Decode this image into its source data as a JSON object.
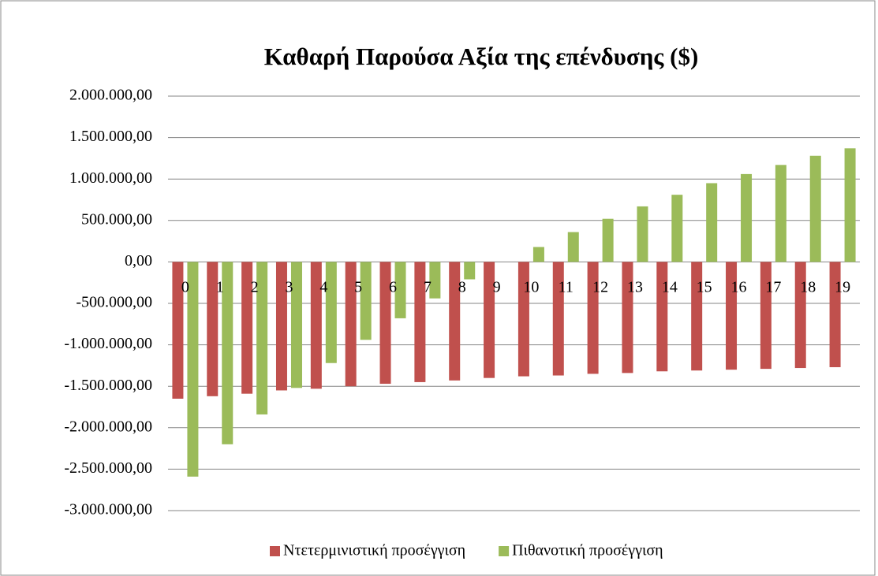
{
  "chart_data": {
    "type": "bar",
    "title": "Καθαρή Παρούσα Αξία της επένδυσης ($)",
    "categories": [
      "0",
      "1",
      "2",
      "3",
      "4",
      "5",
      "6",
      "7",
      "8",
      "9",
      "10",
      "11",
      "12",
      "13",
      "14",
      "15",
      "16",
      "17",
      "18",
      "19"
    ],
    "series": [
      {
        "name": "Ντετερμινιστική προσέγγιση",
        "color": "#c0504d",
        "values": [
          -1650000,
          -1620000,
          -1590000,
          -1550000,
          -1530000,
          -1500000,
          -1470000,
          -1450000,
          -1430000,
          -1400000,
          -1380000,
          -1370000,
          -1350000,
          -1340000,
          -1320000,
          -1310000,
          -1300000,
          -1290000,
          -1280000,
          -1270000
        ]
      },
      {
        "name": "Πιθανοτική προσέγγιση",
        "color": "#9bbb59",
        "values": [
          -2590000,
          -2200000,
          -1840000,
          -1520000,
          -1220000,
          -940000,
          -680000,
          -440000,
          -210000,
          0,
          180000,
          360000,
          520000,
          670000,
          810000,
          950000,
          1060000,
          1170000,
          1280000,
          1370000
        ]
      }
    ],
    "ylim": [
      -3000000,
      2000000
    ],
    "yticks": [
      {
        "value": -3000000,
        "label": "-3.000.000,00"
      },
      {
        "value": -2500000,
        "label": "-2.500.000,00"
      },
      {
        "value": -2000000,
        "label": "-2.000.000,00"
      },
      {
        "value": -1500000,
        "label": "-1.500.000,00"
      },
      {
        "value": -1000000,
        "label": "-1.000.000,00"
      },
      {
        "value": -500000,
        "label": "-500.000,00"
      },
      {
        "value": 0,
        "label": "0,00"
      },
      {
        "value": 500000,
        "label": "500.000,00"
      },
      {
        "value": 1000000,
        "label": "1.000.000,00"
      },
      {
        "value": 1500000,
        "label": "1.500.000,00"
      },
      {
        "value": 2000000,
        "label": "2.000.000,00"
      }
    ],
    "grid": true,
    "legend": "bottom"
  }
}
